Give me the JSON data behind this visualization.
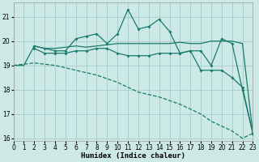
{
  "xlabel": "Humidex (Indice chaleur)",
  "background_color": "#cce9e5",
  "grid_color": "#aacfcb",
  "line_color": "#1a7a6e",
  "xlim": [
    0,
    23
  ],
  "ylim": [
    15.9,
    21.6
  ],
  "yticks": [
    16,
    17,
    18,
    19,
    20,
    21
  ],
  "xticks": [
    0,
    1,
    2,
    3,
    4,
    5,
    6,
    7,
    8,
    9,
    10,
    11,
    12,
    13,
    14,
    15,
    16,
    17,
    18,
    19,
    20,
    21,
    22,
    23
  ],
  "curve_dashed_x": [
    0,
    1,
    2,
    3,
    4,
    5,
    6,
    7,
    8,
    9,
    10,
    11,
    12,
    13,
    14,
    15,
    16,
    17,
    18,
    19,
    20,
    21,
    22,
    23
  ],
  "curve_dashed_y": [
    19.0,
    19.05,
    19.1,
    19.05,
    19.0,
    18.9,
    18.8,
    18.7,
    18.6,
    18.45,
    18.3,
    18.1,
    17.9,
    17.8,
    17.7,
    17.55,
    17.4,
    17.2,
    17.0,
    16.7,
    16.5,
    16.3,
    16.0,
    16.2
  ],
  "curve_flat_x": [
    0,
    1,
    2,
    3,
    4,
    5,
    6,
    7,
    8,
    9,
    10,
    11,
    12,
    13,
    14,
    15,
    16,
    17,
    18,
    19,
    20,
    21,
    22,
    23
  ],
  "curve_flat_y": [
    19.0,
    19.0,
    19.8,
    19.7,
    19.7,
    19.75,
    19.8,
    19.75,
    19.8,
    19.85,
    19.9,
    19.9,
    19.9,
    19.9,
    19.9,
    19.9,
    19.95,
    19.9,
    19.9,
    20.0,
    20.0,
    20.0,
    19.9,
    16.2
  ],
  "curve_jagged_x": [
    2,
    3,
    4,
    5,
    6,
    7,
    8,
    9,
    10,
    11,
    12,
    13,
    14,
    15,
    16,
    17,
    18,
    19,
    20,
    21,
    22,
    23
  ],
  "curve_jagged_y": [
    19.8,
    19.7,
    19.6,
    19.6,
    20.1,
    20.2,
    20.3,
    19.9,
    20.3,
    21.3,
    20.5,
    20.6,
    20.9,
    20.4,
    19.5,
    19.6,
    19.6,
    19.0,
    20.1,
    19.9,
    18.0,
    16.2
  ],
  "curve_mid_x": [
    2,
    3,
    4,
    5,
    6,
    7,
    8,
    9,
    10,
    11,
    12,
    13,
    14,
    15,
    16,
    17,
    18,
    19,
    20,
    21,
    22,
    23
  ],
  "curve_mid_y": [
    19.7,
    19.5,
    19.5,
    19.5,
    19.6,
    19.6,
    19.7,
    19.7,
    19.5,
    19.4,
    19.4,
    19.4,
    19.5,
    19.5,
    19.5,
    19.6,
    18.8,
    18.8,
    18.8,
    18.5,
    18.1,
    16.2
  ]
}
